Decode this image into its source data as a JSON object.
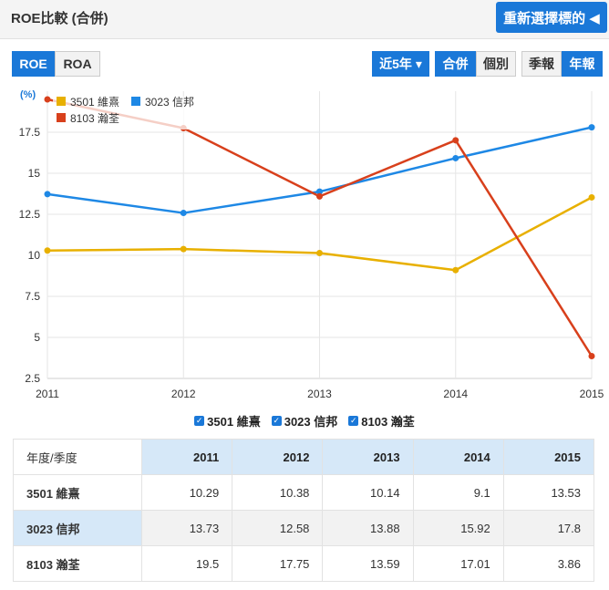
{
  "header": {
    "title": "ROE比較 (合併)",
    "reselect_label": "重新選擇標的 ◀"
  },
  "tabs_left": [
    {
      "label": "ROE",
      "active": true
    },
    {
      "label": "ROA",
      "active": false
    }
  ],
  "tabs_right": {
    "period": {
      "label": "近5年 ▾",
      "active": true
    },
    "consolidation": [
      {
        "label": "合併",
        "active": true
      },
      {
        "label": "個別",
        "active": false
      }
    ],
    "frequency": [
      {
        "label": "季報",
        "active": false
      },
      {
        "label": "年報",
        "active": true
      }
    ]
  },
  "chart_data": {
    "type": "line",
    "ylabel": "(%)",
    "x": [
      "2011",
      "2012",
      "2013",
      "2014",
      "2015"
    ],
    "ylim": [
      2.5,
      20
    ],
    "yticks": [
      "2.5",
      "5",
      "7.5",
      "10",
      "12.5",
      "15",
      "17.5"
    ],
    "ytick_values": [
      2.5,
      5,
      7.5,
      10,
      12.5,
      15,
      17.5
    ],
    "grid": true,
    "legend_position": "top-left",
    "series": [
      {
        "name": "3501 維熹",
        "color": "#e8b000",
        "values": [
          10.29,
          10.38,
          10.14,
          9.1,
          13.53
        ]
      },
      {
        "name": "3023 信邦",
        "color": "#1e88e5",
        "values": [
          13.73,
          12.58,
          13.88,
          15.92,
          17.8
        ]
      },
      {
        "name": "8103 瀚荃",
        "color": "#d8401c",
        "values": [
          19.5,
          17.75,
          13.59,
          17.01,
          3.86
        ]
      }
    ]
  },
  "bottom_legend": [
    "3501 維熹",
    "3023 信邦",
    "8103 瀚荃"
  ],
  "table": {
    "corner": "年度/季度",
    "columns": [
      "2011",
      "2012",
      "2013",
      "2014",
      "2015"
    ],
    "rows": [
      {
        "label": "3501 維熹",
        "values": [
          "10.29",
          "10.38",
          "10.14",
          "9.1",
          "13.53"
        ]
      },
      {
        "label": "3023 信邦",
        "values": [
          "13.73",
          "12.58",
          "13.88",
          "15.92",
          "17.8"
        ]
      },
      {
        "label": "8103 瀚荃",
        "values": [
          "19.5",
          "17.75",
          "13.59",
          "17.01",
          "3.86"
        ]
      }
    ]
  }
}
